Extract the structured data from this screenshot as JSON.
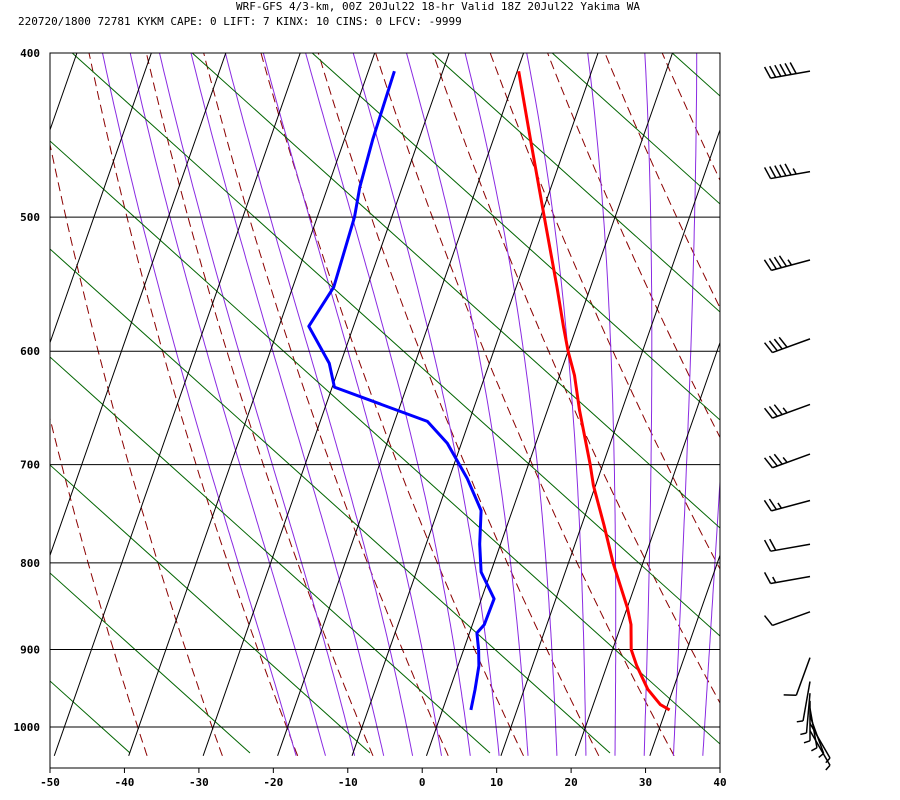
{
  "header": {
    "line1": "WRF-GFS 4/3-km, 00Z 20Jul22 18-hr Valid 18Z 20Jul22 Yakima WA",
    "line2": "220720/1800 72781  KYKM    CAPE:     0 LIFT:     7 KINX:    10 CINS:     0 LFCV: -9999"
  },
  "colors": {
    "temperature": "#ff0000",
    "dewpoint": "#0000ff",
    "isotherm_grid": "#000000",
    "dry_adiabat": "#8b0000",
    "moist_adiabat": "#8a2be2",
    "mixing_ratio": "#006400",
    "wind_barb": "#000000"
  },
  "chart_data": {
    "type": "line",
    "title": "",
    "xlabel": "",
    "ylabel": "",
    "x_axis": {
      "range": [
        -50,
        40
      ],
      "ticks": [
        -50,
        -40,
        -30,
        -20,
        -10,
        0,
        10,
        20,
        30,
        40
      ],
      "skew": "skew-T"
    },
    "y_axis": {
      "scale": "log",
      "range": [
        400,
        1040
      ],
      "inverted": true,
      "ticks": [
        400,
        500,
        600,
        700,
        800,
        900,
        1000
      ]
    },
    "grid": true,
    "series": [
      {
        "role": "temperature",
        "points": [
          {
            "p": 410,
            "t": -19.8
          },
          {
            "p": 450,
            "t": -15.0
          },
          {
            "p": 500,
            "t": -9.5
          },
          {
            "p": 550,
            "t": -4.5
          },
          {
            "p": 580,
            "t": -1.8
          },
          {
            "p": 600,
            "t": 0.0
          },
          {
            "p": 620,
            "t": 2.0
          },
          {
            "p": 650,
            "t": 4.3
          },
          {
            "p": 700,
            "t": 8.3
          },
          {
            "p": 720,
            "t": 9.7
          },
          {
            "p": 760,
            "t": 13.0
          },
          {
            "p": 800,
            "t": 16.0
          },
          {
            "p": 850,
            "t": 20.0
          },
          {
            "p": 870,
            "t": 21.3
          },
          {
            "p": 900,
            "t": 22.5
          },
          {
            "p": 920,
            "t": 24.0
          },
          {
            "p": 950,
            "t": 26.6
          },
          {
            "p": 970,
            "t": 29.0
          },
          {
            "p": 977,
            "t": 30.5
          }
        ]
      },
      {
        "role": "dewpoint",
        "points": [
          {
            "p": 410,
            "t": -36.5
          },
          {
            "p": 450,
            "t": -36.2
          },
          {
            "p": 480,
            "t": -35.7
          },
          {
            "p": 500,
            "t": -35.0
          },
          {
            "p": 550,
            "t": -34.5
          },
          {
            "p": 580,
            "t": -36.0
          },
          {
            "p": 610,
            "t": -31.5
          },
          {
            "p": 630,
            "t": -29.7
          },
          {
            "p": 660,
            "t": -15.6
          },
          {
            "p": 680,
            "t": -11.9
          },
          {
            "p": 713,
            "t": -7.6
          },
          {
            "p": 745,
            "t": -4.2
          },
          {
            "p": 780,
            "t": -2.8
          },
          {
            "p": 810,
            "t": -1.3
          },
          {
            "p": 830,
            "t": 0.7
          },
          {
            "p": 840,
            "t": 1.7
          },
          {
            "p": 870,
            "t": 1.6
          },
          {
            "p": 880,
            "t": 1.0
          },
          {
            "p": 900,
            "t": 2.0
          },
          {
            "p": 920,
            "t": 2.8
          },
          {
            "p": 950,
            "t": 3.4
          },
          {
            "p": 977,
            "t": 3.8
          }
        ]
      }
    ],
    "wind_barbs": [
      {
        "p": 410,
        "dir": 260,
        "speed_kt": 60
      },
      {
        "p": 470,
        "dir": 260,
        "speed_kt": 55
      },
      {
        "p": 530,
        "dir": 255,
        "speed_kt": 45
      },
      {
        "p": 590,
        "dir": 250,
        "speed_kt": 40
      },
      {
        "p": 645,
        "dir": 250,
        "speed_kt": 35
      },
      {
        "p": 690,
        "dir": 250,
        "speed_kt": 35
      },
      {
        "p": 735,
        "dir": 255,
        "speed_kt": 25
      },
      {
        "p": 780,
        "dir": 260,
        "speed_kt": 20
      },
      {
        "p": 815,
        "dir": 260,
        "speed_kt": 15
      },
      {
        "p": 855,
        "dir": 250,
        "speed_kt": 10
      },
      {
        "p": 910,
        "dir": 200,
        "speed_kt": 10
      },
      {
        "p": 940,
        "dir": 190,
        "speed_kt": 5
      },
      {
        "p": 955,
        "dir": 185,
        "speed_kt": 5
      },
      {
        "p": 965,
        "dir": 180,
        "speed_kt": 5
      },
      {
        "p": 975,
        "dir": 170,
        "speed_kt": 5
      },
      {
        "p": 985,
        "dir": 160,
        "speed_kt": 5
      },
      {
        "p": 995,
        "dir": 150,
        "speed_kt": 5
      },
      {
        "p": 1005,
        "dir": 150,
        "speed_kt": 5
      }
    ]
  }
}
